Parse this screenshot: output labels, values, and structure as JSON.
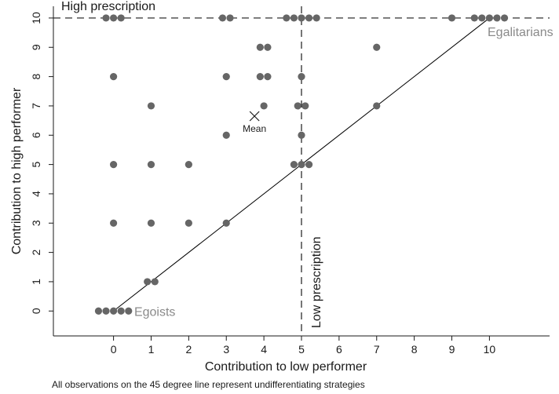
{
  "chart_data": {
    "type": "scatter",
    "xlabel": "Contribution to low performer",
    "ylabel": "Contribution to high performer",
    "xlim": [
      -1.6,
      11.6
    ],
    "ylim": [
      -0.85,
      10.4
    ],
    "x_ticks": [
      "0",
      "1",
      "2",
      "3",
      "4",
      "5",
      "6",
      "7",
      "8",
      "9",
      "10"
    ],
    "y_ticks": [
      "0",
      "1",
      "2",
      "3",
      "4",
      "5",
      "6",
      "7",
      "8",
      "9",
      "10"
    ],
    "grid": false,
    "point_color": "#666666",
    "line_color": "#000000",
    "annotation_gray": "#8a8a8a",
    "reference_lines": {
      "high_prescription": {
        "y": 10,
        "label": "High prescription"
      },
      "low_prescription": {
        "x": 5,
        "label": "Low prescription"
      }
    },
    "diagonal": {
      "from": [
        0,
        0
      ],
      "to": [
        10,
        10
      ]
    },
    "mean": {
      "x": 3.75,
      "y": 6.65,
      "label": "Mean"
    },
    "labels": {
      "egoists": "Egoists",
      "egalitarians": "Egalitarians"
    },
    "note": "All observations on the 45 degree line represent undifferentiating strategies",
    "points": [
      {
        "x": -0.4,
        "y": 0
      },
      {
        "x": -0.2,
        "y": 0
      },
      {
        "x": 0,
        "y": 0
      },
      {
        "x": 0.2,
        "y": 0
      },
      {
        "x": 0.4,
        "y": 0
      },
      {
        "x": 0.9,
        "y": 1
      },
      {
        "x": 1.1,
        "y": 1
      },
      {
        "x": 0,
        "y": 3
      },
      {
        "x": 1,
        "y": 3
      },
      {
        "x": 2,
        "y": 3
      },
      {
        "x": 3,
        "y": 3
      },
      {
        "x": 0,
        "y": 5
      },
      {
        "x": 1,
        "y": 5
      },
      {
        "x": 2,
        "y": 5
      },
      {
        "x": 4.8,
        "y": 5
      },
      {
        "x": 5,
        "y": 5
      },
      {
        "x": 5.2,
        "y": 5
      },
      {
        "x": 3,
        "y": 6
      },
      {
        "x": 5,
        "y": 6
      },
      {
        "x": 1,
        "y": 7
      },
      {
        "x": 4,
        "y": 7
      },
      {
        "x": 4.9,
        "y": 7
      },
      {
        "x": 5.1,
        "y": 7
      },
      {
        "x": 7,
        "y": 7
      },
      {
        "x": 0,
        "y": 8
      },
      {
        "x": 3,
        "y": 8
      },
      {
        "x": 3.9,
        "y": 8
      },
      {
        "x": 4.1,
        "y": 8
      },
      {
        "x": 5,
        "y": 8
      },
      {
        "x": 3.9,
        "y": 9
      },
      {
        "x": 4.1,
        "y": 9
      },
      {
        "x": 7,
        "y": 9
      },
      {
        "x": -0.2,
        "y": 10
      },
      {
        "x": 0,
        "y": 10
      },
      {
        "x": 0.2,
        "y": 10
      },
      {
        "x": 2.9,
        "y": 10
      },
      {
        "x": 3.1,
        "y": 10
      },
      {
        "x": 4.6,
        "y": 10
      },
      {
        "x": 4.8,
        "y": 10
      },
      {
        "x": 5,
        "y": 10
      },
      {
        "x": 5.2,
        "y": 10
      },
      {
        "x": 5.4,
        "y": 10
      },
      {
        "x": 9,
        "y": 10
      },
      {
        "x": 9.6,
        "y": 10
      },
      {
        "x": 9.8,
        "y": 10
      },
      {
        "x": 10,
        "y": 10
      },
      {
        "x": 10.2,
        "y": 10
      },
      {
        "x": 10.4,
        "y": 10
      }
    ]
  }
}
